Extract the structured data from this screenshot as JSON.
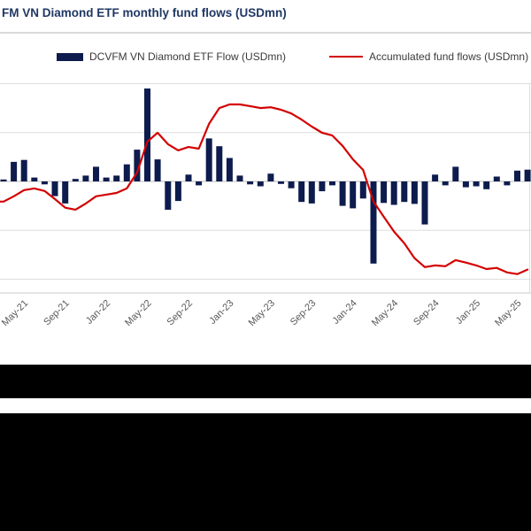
{
  "header": {
    "title": "FM VN Diamond ETF monthly fund flows (USDmn)",
    "title_color": "#203864"
  },
  "legend": {
    "bar_label": "DCVFM VN Diamond ETF Flow (USDmn)",
    "line_label": "Accumulated fund flows (USDmn)"
  },
  "colors": {
    "bar": "#0d1c4d",
    "line": "#d40000",
    "grid": "#dedede",
    "zero_line": "#b8b8b8",
    "axis_line": "#c9c9c9",
    "tick_text": "#595959",
    "footer_band": "#000000"
  },
  "chart_data": {
    "type": "bar+line",
    "title": "FM VN Diamond ETF monthly fund flows (USDmn)",
    "grid": "horizontal",
    "legend_position": "top",
    "x": [
      "Mar-21",
      "Apr-21",
      "May-21",
      "Jun-21",
      "Jul-21",
      "Aug-21",
      "Sep-21",
      "Oct-21",
      "Nov-21",
      "Dec-21",
      "Jan-22",
      "Feb-22",
      "Mar-22",
      "Apr-22",
      "May-22",
      "Jun-22",
      "Jul-22",
      "Aug-22",
      "Sep-22",
      "Oct-22",
      "Nov-22",
      "Dec-22",
      "Jan-23",
      "Feb-23",
      "Mar-23",
      "Apr-23",
      "May-23",
      "Jun-23",
      "Jul-23",
      "Aug-23",
      "Sep-23",
      "Oct-23",
      "Nov-23",
      "Dec-23",
      "Jan-24",
      "Feb-24",
      "Mar-24",
      "Apr-24",
      "May-24",
      "Jun-24",
      "Jul-24",
      "Aug-24",
      "Sep-24",
      "Oct-24",
      "Nov-24",
      "Dec-24",
      "Jan-25",
      "Feb-25",
      "Mar-25",
      "Apr-25",
      "May-25",
      "Jun-25"
    ],
    "tick_labels": [
      "May-21",
      "Sep-21",
      "Jan-22",
      "May-22",
      "Sep-22",
      "Jan-23",
      "May-23",
      "Sep-23",
      "Jan-24",
      "May-24",
      "Sep-24",
      "Jan-25",
      "May-25"
    ],
    "bar_ylim": [
      -200,
      200
    ],
    "line_ylim": [
      200,
      1000
    ],
    "series": [
      {
        "name": "DCVFM VN Diamond ETF Flow (USDmn)",
        "type": "bar",
        "axis": "left",
        "values": [
          4,
          40,
          44,
          8,
          -6,
          -30,
          -45,
          5,
          12,
          30,
          8,
          12,
          35,
          65,
          190,
          45,
          -58,
          -40,
          14,
          -8,
          88,
          72,
          48,
          12,
          -6,
          -10,
          16,
          -5,
          -14,
          -42,
          -45,
          -20,
          -8,
          -50,
          -55,
          -35,
          -168,
          -44,
          -48,
          -42,
          -46,
          -88,
          14,
          -8,
          30,
          -12,
          -10,
          -16,
          10,
          -8,
          22,
          24
        ]
      },
      {
        "name": "Accumulated fund flows (USDmn)",
        "type": "line",
        "axis": "right",
        "values": [
          577,
          596,
          618,
          624,
          615,
          586,
          555,
          548,
          570,
          596,
          602,
          608,
          624,
          681,
          791,
          823,
          782,
          760,
          772,
          766,
          855,
          911,
          924,
          924,
          918,
          911,
          914,
          905,
          892,
          870,
          845,
          823,
          813,
          776,
          728,
          690,
          577,
          523,
          470,
          428,
          375,
          343,
          349,
          346,
          368,
          359,
          349,
          336,
          340,
          324,
          318,
          334
        ]
      }
    ]
  },
  "footer": {
    "band_color": "#000000"
  }
}
